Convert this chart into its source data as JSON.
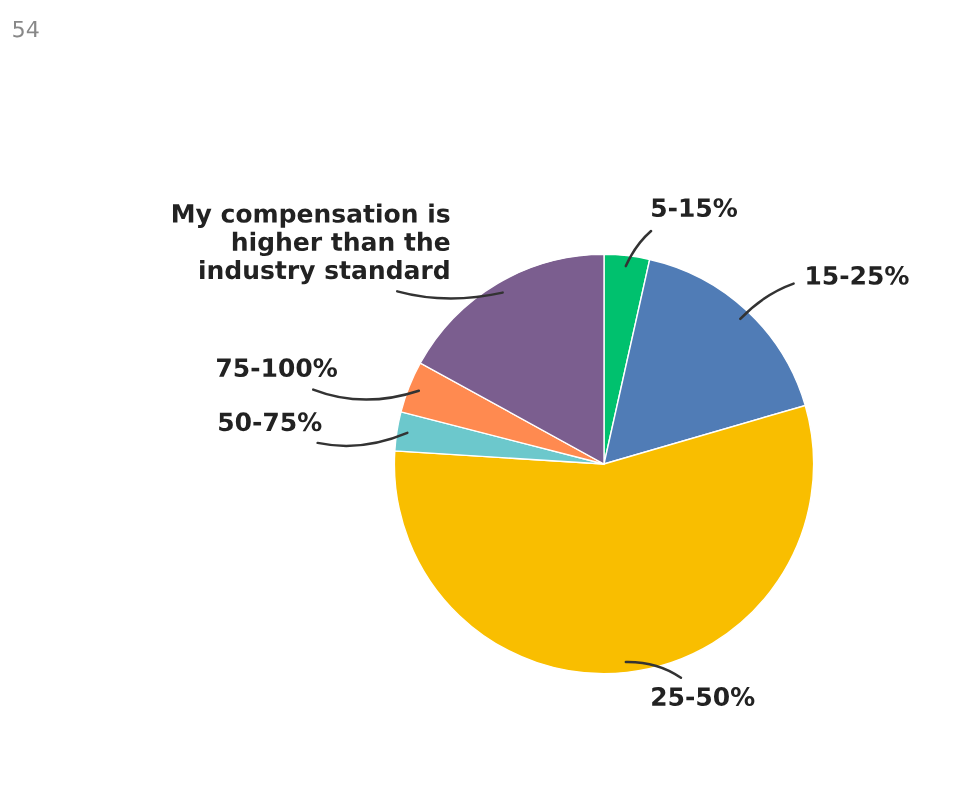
{
  "chart_data": {
    "type": "pie",
    "categories": [
      "5-15%",
      "15-25%",
      "25-50%",
      "50-75%",
      "75-100%",
      "My compensation is\nhigher than the\nindustry standard"
    ],
    "values": [
      3.5,
      17,
      55.5,
      3,
      4,
      17
    ],
    "colors": [
      "#00c16e",
      "#507cb6",
      "#f9be00",
      "#6cc8cc",
      "#ff8a50",
      "#7b5e8f"
    ],
    "annotations": [
      "54"
    ],
    "legend": false
  }
}
